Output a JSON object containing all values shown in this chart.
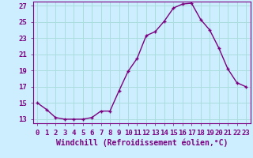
{
  "x": [
    0,
    1,
    2,
    3,
    4,
    5,
    6,
    7,
    8,
    9,
    10,
    11,
    12,
    13,
    14,
    15,
    16,
    17,
    18,
    19,
    20,
    21,
    22,
    23
  ],
  "y": [
    15,
    14.2,
    13.2,
    13.0,
    13.0,
    13.0,
    13.2,
    14.0,
    14.0,
    16.5,
    18.9,
    20.5,
    23.3,
    23.8,
    25.1,
    26.7,
    27.2,
    27.3,
    25.3,
    24.0,
    21.8,
    19.2,
    17.5,
    17.0
  ],
  "line_color": "#7B0080",
  "marker": "+",
  "bg_color": "#cceeff",
  "grid_color": "#aadddd",
  "xlabel": "Windchill (Refroidissement éolien,°C)",
  "xlim_left": -0.5,
  "xlim_right": 23.5,
  "ylim_bottom": 12.5,
  "ylim_top": 27.5,
  "yticks": [
    13,
    15,
    17,
    19,
    21,
    23,
    25,
    27
  ],
  "xticks": [
    0,
    1,
    2,
    3,
    4,
    5,
    6,
    7,
    8,
    9,
    10,
    11,
    12,
    13,
    14,
    15,
    16,
    17,
    18,
    19,
    20,
    21,
    22,
    23
  ],
  "font_color": "#7B0080",
  "tick_fontsize": 6.5,
  "label_fontsize": 7.0,
  "linewidth": 1.0,
  "markersize": 3.5,
  "markeredgewidth": 1.0
}
